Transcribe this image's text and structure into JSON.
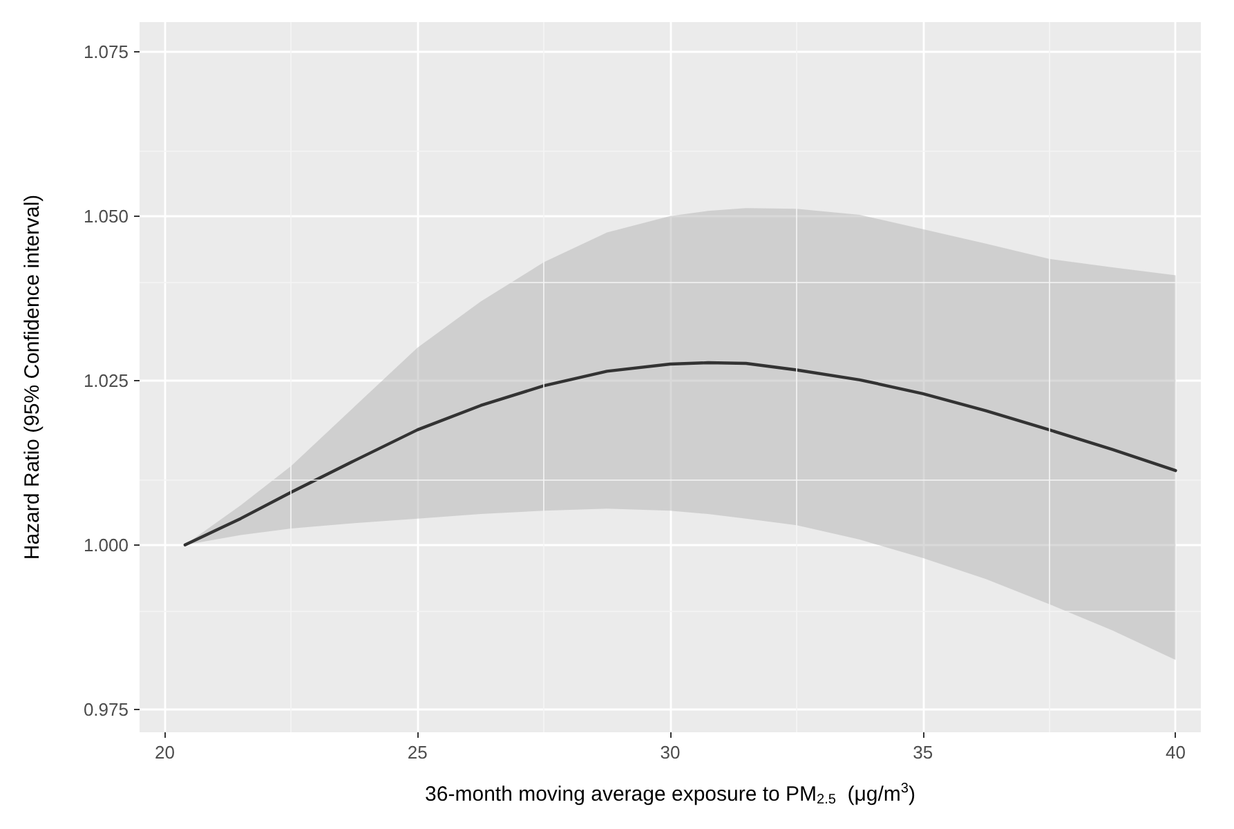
{
  "chart_data": {
    "type": "line",
    "xlabel": "36-month moving average exposure to PM$_{2.5}$  (μg/m$^{3}$)",
    "ylabel": "Hazard Ratio (95% Confidence interval)",
    "x": [
      20.4,
      21.5,
      22.5,
      23.75,
      25,
      26.25,
      27.5,
      28.75,
      30,
      30.75,
      31.5,
      32.5,
      33.75,
      35,
      36.25,
      37.5,
      38.75,
      40
    ],
    "series": [
      {
        "color": "#333333",
        "values": [
          1.0,
          1.004,
          1.008,
          1.0128,
          1.0175,
          1.0212,
          1.0242,
          1.0264,
          1.0275,
          1.0277,
          1.0276,
          1.0266,
          1.0251,
          1.023,
          1.0204,
          1.0175,
          1.0145,
          1.0113
        ],
        "lower": [
          1.0,
          1.0015,
          1.0025,
          1.0033,
          1.004,
          1.0047,
          1.0052,
          1.0055,
          1.0052,
          1.0047,
          1.004,
          1.003,
          1.0008,
          0.998,
          0.9948,
          0.991,
          0.987,
          0.9825
        ],
        "upper": [
          1.0,
          1.006,
          1.012,
          1.021,
          1.03,
          1.037,
          1.043,
          1.0475,
          1.05,
          1.0508,
          1.0512,
          1.0511,
          1.0502,
          1.048,
          1.0458,
          1.0435,
          1.0422,
          1.041
        ]
      }
    ],
    "xlim": [
      19.5,
      40.5
    ],
    "xticks": [
      20,
      25,
      30,
      35,
      40
    ],
    "ylim": [
      0.9715,
      1.0795
    ],
    "yticks": [
      {
        "value": 0.975,
        "label": "0.975"
      },
      {
        "value": 1.0,
        "label": "1.000"
      },
      {
        "value": 1.025,
        "label": "1.025"
      },
      {
        "value": 1.05,
        "label": "1.050"
      },
      {
        "value": 1.075,
        "label": "1.075"
      }
    ],
    "grid": true
  }
}
